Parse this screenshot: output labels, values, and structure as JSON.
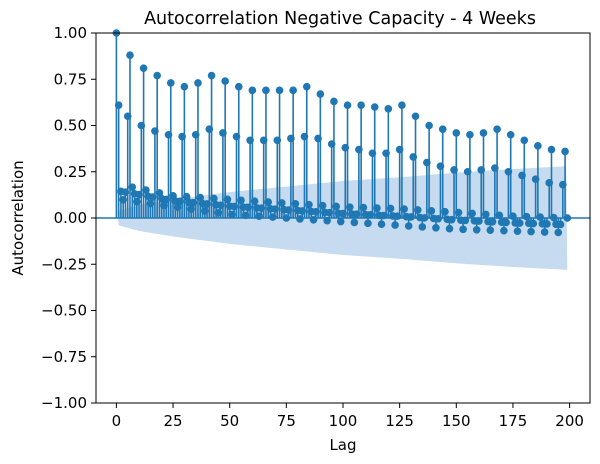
{
  "chart_data": {
    "type": "stem",
    "title": "Autocorrelation Negative Capacity - 4 Weeks",
    "xlabel": "Lag",
    "ylabel": "Autocorrelation",
    "xlim": [
      -9,
      209
    ],
    "ylim": [
      -1.0,
      1.0
    ],
    "x_ticks": [
      0,
      25,
      50,
      75,
      100,
      125,
      150,
      175,
      200
    ],
    "y_ticks": [
      -1.0,
      -0.75,
      -0.5,
      -0.25,
      0.0,
      0.25,
      0.5,
      0.75,
      1.0
    ],
    "x_tick_labels": [
      "0",
      "25",
      "50",
      "75",
      "100",
      "125",
      "150",
      "175",
      "200"
    ],
    "y_tick_labels": [
      "−1.00",
      "−0.75",
      "−0.50",
      "−0.25",
      "0.00",
      "0.25",
      "0.50",
      "0.75",
      "1.00"
    ],
    "max_lag": 199,
    "confidence_band": {
      "lags": [
        1,
        10,
        25,
        50,
        75,
        100,
        125,
        150,
        175,
        199
      ],
      "half_width": [
        0.04,
        0.07,
        0.1,
        0.14,
        0.17,
        0.2,
        0.22,
        0.245,
        0.265,
        0.28
      ]
    },
    "peaks": {
      "lags": [
        0,
        1,
        6,
        12,
        18,
        24,
        30,
        36,
        42,
        48,
        54,
        60,
        66,
        72,
        78,
        84,
        90,
        96,
        102,
        108,
        114,
        120,
        126,
        132,
        138,
        144,
        150,
        156,
        162,
        168,
        174,
        180,
        186,
        192,
        198
      ],
      "values": [
        1.0,
        0.61,
        0.88,
        0.81,
        0.77,
        0.73,
        0.71,
        0.73,
        0.77,
        0.74,
        0.71,
        0.69,
        0.69,
        0.69,
        0.69,
        0.71,
        0.67,
        0.63,
        0.61,
        0.61,
        0.6,
        0.59,
        0.61,
        0.55,
        0.5,
        0.48,
        0.46,
        0.45,
        0.46,
        0.48,
        0.45,
        0.42,
        0.39,
        0.37,
        0.36
      ]
    },
    "secondary_peaks": {
      "lags": [
        5,
        11,
        17,
        23,
        29,
        35,
        41,
        47,
        53,
        59,
        65,
        71,
        77,
        83,
        89,
        95,
        101,
        107,
        113,
        119,
        125,
        131,
        137,
        143,
        149,
        155,
        161,
        167,
        173,
        179,
        185,
        191,
        197
      ],
      "values": [
        0.55,
        0.5,
        0.47,
        0.45,
        0.44,
        0.45,
        0.48,
        0.46,
        0.44,
        0.42,
        0.42,
        0.42,
        0.43,
        0.44,
        0.43,
        0.4,
        0.38,
        0.37,
        0.35,
        0.35,
        0.37,
        0.33,
        0.3,
        0.28,
        0.26,
        0.25,
        0.26,
        0.27,
        0.25,
        0.23,
        0.21,
        0.19,
        0.18
      ]
    },
    "baseline": {
      "lags": [
        2,
        25,
        50,
        75,
        100,
        125,
        150,
        175,
        199
      ],
      "values": [
        0.18,
        0.12,
        0.1,
        0.08,
        0.06,
        0.05,
        0.03,
        0.01,
        0.0
      ]
    },
    "trough": {
      "lags": [
        2,
        50,
        100,
        150,
        199
      ],
      "values": [
        0.1,
        0.02,
        -0.02,
        -0.06,
        -0.08
      ]
    },
    "colors": {
      "stem": "#1f77b4",
      "band": "#c6dbef",
      "zero_line": "#1f77b4"
    }
  }
}
